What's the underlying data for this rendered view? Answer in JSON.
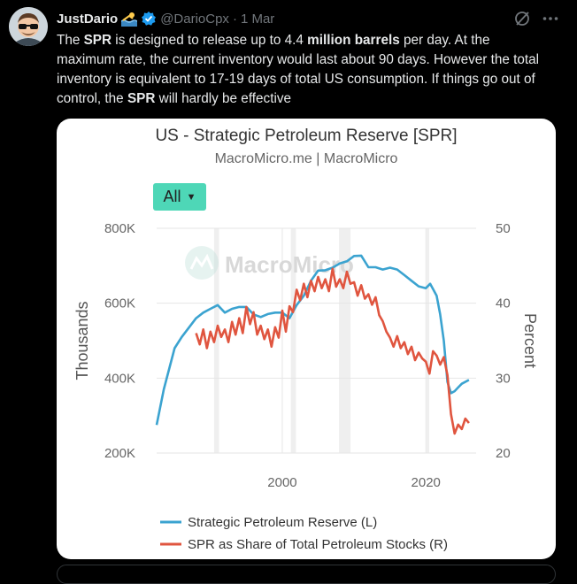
{
  "tweet": {
    "author_name": "JustDario",
    "author_emoji": "swimmer-emoji",
    "verified_icon": "verified-badge-icon",
    "handle": "@DarioCpx",
    "separator": "·",
    "date": "1 Mar",
    "text_segments": [
      {
        "text": "The ",
        "bold": false
      },
      {
        "text": "SPR",
        "bold": true
      },
      {
        "text": " is designed to release up to 4.4 ",
        "bold": false
      },
      {
        "text": "million barrels",
        "bold": true
      },
      {
        "text": " per day. At the maximum rate, the current inventory would last about 90 days. However the total inventory is equivalent to 17-19 days of total US consumption. If things go out of control, the ",
        "bold": false
      },
      {
        "text": "SPR",
        "bold": true
      },
      {
        "text": " will hardly be effective",
        "bold": false
      }
    ],
    "icons": {
      "grok": "grok-icon",
      "more": "more-icon"
    },
    "colors": {
      "background": "#000000",
      "text": "#e7e9ea",
      "muted": "#71767b",
      "verified": "#1d9bf0"
    }
  },
  "chart_card": {
    "filter_label": "All",
    "watermark": "MacroMicro",
    "background": "#ffffff"
  },
  "chart_data": {
    "type": "line",
    "title": "US - Strategic Petroleum Reserve [SPR]",
    "subtitle": "MacroMicro.me | MacroMicro",
    "xlabel": "",
    "ylabel_left": "Thousands",
    "ylabel_right": "Percent",
    "x_ticks": [
      2000,
      2020
    ],
    "xlim": [
      1982.5,
      2027
    ],
    "y_left_ticks": [
      "200K",
      "400K",
      "600K",
      "800K"
    ],
    "y_left_ticks_values": [
      200,
      400,
      600,
      800
    ],
    "y_left_lim": [
      200,
      800
    ],
    "y_right_ticks": [
      20,
      30,
      40,
      50
    ],
    "y_right_lim": [
      20,
      50
    ],
    "grid": true,
    "legend_position": "bottom",
    "recession_bands": [
      [
        1990.5,
        1991.2
      ],
      [
        2001.2,
        2001.9
      ],
      [
        2007.9,
        2009.5
      ],
      [
        2020.1,
        2020.4
      ]
    ],
    "series": [
      {
        "name": "Strategic Petroleum Reserve (L)",
        "axis": "left",
        "color": "#3ba3d0",
        "x": [
          1982.5,
          1983.5,
          1985,
          1986,
          1987,
          1988,
          1989,
          1990,
          1991,
          1992,
          1993,
          1994,
          1995,
          1996,
          1997,
          1998,
          1999,
          2000,
          2001,
          2002,
          2003,
          2004,
          2005,
          2006,
          2007,
          2008,
          2009,
          2010,
          2011,
          2012,
          2013,
          2014,
          2015,
          2016,
          2017,
          2018,
          2019,
          2020,
          2020.6,
          2021,
          2021.5,
          2022,
          2022.5,
          2023,
          2023.5,
          2024,
          2024.5,
          2025,
          2026
        ],
        "values": [
          275,
          370,
          480,
          510,
          535,
          560,
          575,
          585,
          595,
          575,
          585,
          590,
          590,
          570,
          563,
          571,
          575,
          575,
          560,
          595,
          620,
          660,
          687,
          688,
          695,
          706,
          712,
          726,
          727,
          696,
          696,
          690,
          695,
          690,
          675,
          660,
          645,
          640,
          652,
          638,
          620,
          570,
          500,
          390,
          360,
          365,
          375,
          385,
          395
        ]
      },
      {
        "name": "SPR as Share of Total Petroleum Stocks (R)",
        "axis": "right",
        "color": "#e0553f",
        "x": [
          1988,
          1988.5,
          1989,
          1989.5,
          1990,
          1990.5,
          1991,
          1991.5,
          1992,
          1992.5,
          1993,
          1993.5,
          1994,
          1994.5,
          1995,
          1995.5,
          1996,
          1996.5,
          1997,
          1997.5,
          1998,
          1998.5,
          1999,
          1999.5,
          2000,
          2000.5,
          2001,
          2001.5,
          2002,
          2002.5,
          2003,
          2003.5,
          2004,
          2004.5,
          2005,
          2005.5,
          2006,
          2006.5,
          2007,
          2007.5,
          2008,
          2008.5,
          2009,
          2009.5,
          2010,
          2010.5,
          2011,
          2011.5,
          2012,
          2012.5,
          2013,
          2013.5,
          2014,
          2014.5,
          2015,
          2015.5,
          2016,
          2016.5,
          2017,
          2017.5,
          2018,
          2018.5,
          2019,
          2019.5,
          2020,
          2020.5,
          2021,
          2021.5,
          2022,
          2022.5,
          2023,
          2023.5,
          2024,
          2024.5,
          2025,
          2025.5,
          2026
        ],
        "values": [
          36.0,
          34.5,
          36.5,
          34.0,
          36.2,
          34.8,
          37.0,
          35.5,
          36.5,
          34.8,
          37.5,
          35.8,
          38.0,
          36.0,
          39.5,
          37.2,
          38.8,
          35.8,
          37.0,
          35.2,
          36.5,
          34.2,
          36.8,
          35.4,
          39.0,
          36.2,
          39.6,
          38.8,
          41.8,
          40.4,
          42.6,
          40.8,
          43.0,
          41.6,
          43.5,
          42.0,
          43.2,
          41.6,
          44.6,
          42.2,
          43.2,
          42.0,
          44.2,
          42.6,
          42.8,
          41.0,
          42.4,
          40.6,
          41.2,
          39.8,
          40.8,
          38.4,
          37.6,
          36.2,
          35.4,
          34.2,
          35.6,
          34.0,
          34.8,
          33.2,
          34.2,
          32.4,
          33.4,
          32.6,
          32.2,
          30.6,
          33.6,
          33.0,
          31.8,
          32.8,
          30.4,
          25.2,
          22.6,
          23.8,
          23.2,
          24.6,
          24.0
        ]
      }
    ]
  }
}
